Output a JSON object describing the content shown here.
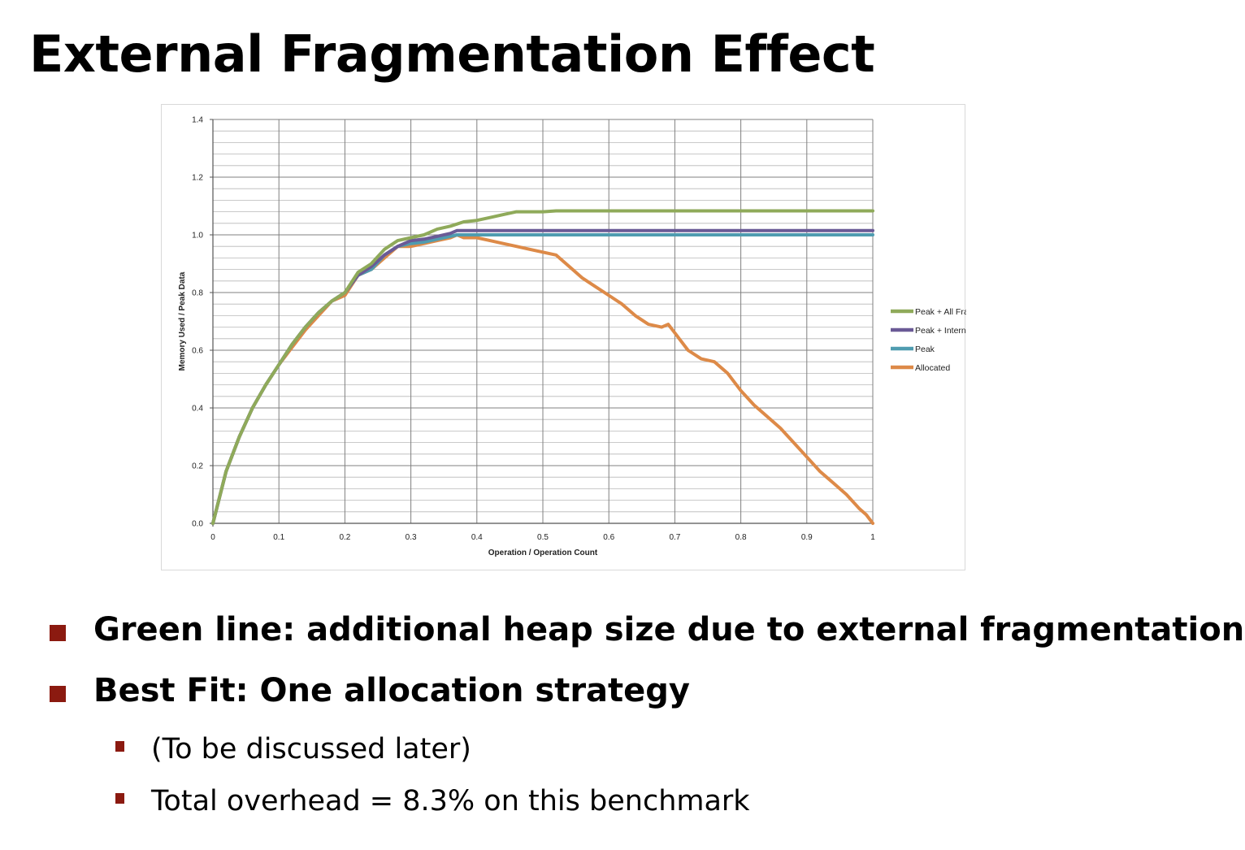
{
  "slide": {
    "title": "External Fragmentation Effect",
    "bullets": [
      {
        "text": "Green line: additional heap size due to external fragmentation",
        "level": 1
      },
      {
        "text": "Best Fit: One allocation strategy",
        "level": 1
      },
      {
        "text": "(To be discussed later)",
        "level": 2
      },
      {
        "text": "Total overhead = 8.3% on this benchmark",
        "level": 2
      }
    ],
    "bullet_color": "#8b1a10"
  },
  "chart_data": {
    "type": "line",
    "xlabel": "Operation / Operation Count",
    "ylabel": "Memory Used / Peak Data",
    "xlim": [
      0,
      1
    ],
    "ylim": [
      0,
      1.4
    ],
    "xticks": [
      0,
      0.1,
      0.2,
      0.3,
      0.4,
      0.5,
      0.6,
      0.7,
      0.8,
      0.9,
      1
    ],
    "xtick_labels": [
      "0",
      "0.1",
      "0.2",
      "0.3",
      "0.4",
      "0.5",
      "0.6",
      "0.7",
      "0.8",
      "0.9",
      "1"
    ],
    "yticks": [
      0,
      0.2,
      0.4,
      0.6,
      0.8,
      1.0,
      1.2,
      1.4
    ],
    "ytick_labels": [
      "0.0",
      "0.2",
      "0.4",
      "0.6",
      "0.8",
      "1.0",
      "1.2",
      "1.4"
    ],
    "grid": true,
    "legend_position": "right",
    "series": [
      {
        "name": "Peak + All Frag (Best Fit)",
        "color": "#8faa5a",
        "x": [
          0,
          0.02,
          0.04,
          0.06,
          0.08,
          0.1,
          0.12,
          0.14,
          0.16,
          0.18,
          0.2,
          0.22,
          0.24,
          0.26,
          0.28,
          0.3,
          0.32,
          0.34,
          0.36,
          0.38,
          0.4,
          0.42,
          0.44,
          0.46,
          0.5,
          0.52,
          1.0
        ],
        "y": [
          0,
          0.18,
          0.3,
          0.4,
          0.48,
          0.55,
          0.62,
          0.68,
          0.73,
          0.77,
          0.8,
          0.87,
          0.9,
          0.95,
          0.98,
          0.99,
          1.0,
          1.02,
          1.03,
          1.045,
          1.05,
          1.06,
          1.07,
          1.08,
          1.08,
          1.083,
          1.083
        ]
      },
      {
        "name": "Peak + Internal Frag",
        "color": "#6a5a96",
        "x": [
          0,
          0.02,
          0.04,
          0.06,
          0.08,
          0.1,
          0.12,
          0.14,
          0.16,
          0.18,
          0.2,
          0.22,
          0.24,
          0.26,
          0.28,
          0.3,
          0.32,
          0.34,
          0.36,
          0.37,
          1.0
        ],
        "y": [
          0,
          0.18,
          0.3,
          0.4,
          0.48,
          0.55,
          0.62,
          0.68,
          0.73,
          0.77,
          0.8,
          0.86,
          0.89,
          0.93,
          0.96,
          0.98,
          0.985,
          0.995,
          1.005,
          1.015,
          1.015
        ]
      },
      {
        "name": "Peak",
        "color": "#4f9cb0",
        "x": [
          0,
          0.02,
          0.04,
          0.06,
          0.08,
          0.1,
          0.12,
          0.14,
          0.16,
          0.18,
          0.2,
          0.22,
          0.24,
          0.26,
          0.28,
          0.3,
          0.32,
          0.34,
          0.36,
          0.37,
          1.0
        ],
        "y": [
          0,
          0.18,
          0.3,
          0.4,
          0.48,
          0.55,
          0.62,
          0.68,
          0.73,
          0.77,
          0.8,
          0.86,
          0.88,
          0.93,
          0.96,
          0.97,
          0.975,
          0.985,
          0.995,
          1.0,
          1.0
        ]
      },
      {
        "name": "Allocated",
        "color": "#dd8a48",
        "x": [
          0,
          0.02,
          0.04,
          0.06,
          0.08,
          0.1,
          0.12,
          0.14,
          0.16,
          0.18,
          0.2,
          0.22,
          0.24,
          0.26,
          0.28,
          0.3,
          0.32,
          0.34,
          0.36,
          0.37,
          0.38,
          0.4,
          0.42,
          0.44,
          0.46,
          0.48,
          0.5,
          0.52,
          0.54,
          0.56,
          0.58,
          0.6,
          0.62,
          0.64,
          0.66,
          0.68,
          0.69,
          0.7,
          0.72,
          0.74,
          0.76,
          0.78,
          0.8,
          0.82,
          0.84,
          0.86,
          0.88,
          0.9,
          0.92,
          0.94,
          0.96,
          0.98,
          0.99,
          1.0
        ],
        "y": [
          0,
          0.18,
          0.3,
          0.4,
          0.48,
          0.55,
          0.61,
          0.67,
          0.72,
          0.77,
          0.79,
          0.86,
          0.88,
          0.92,
          0.96,
          0.96,
          0.97,
          0.98,
          0.99,
          1.0,
          0.99,
          0.99,
          0.98,
          0.97,
          0.96,
          0.95,
          0.94,
          0.93,
          0.89,
          0.85,
          0.82,
          0.79,
          0.76,
          0.72,
          0.69,
          0.68,
          0.69,
          0.66,
          0.6,
          0.57,
          0.56,
          0.52,
          0.46,
          0.41,
          0.37,
          0.33,
          0.28,
          0.23,
          0.18,
          0.14,
          0.1,
          0.05,
          0.03,
          0.0
        ]
      }
    ]
  }
}
